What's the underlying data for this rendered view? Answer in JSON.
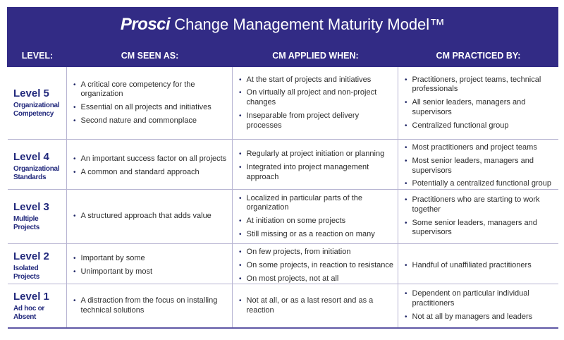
{
  "header": {
    "logo": "Prosci",
    "title": "Change Management Maturity Model™"
  },
  "columns": [
    "LEVEL:",
    "CM SEEN AS:",
    "CM APPLIED WHEN:",
    "CM PRACTICED BY:"
  ],
  "bullet_char": "•",
  "colors": {
    "header_band": "#322b85",
    "level_text": "#232a7d",
    "grid_border": "#b7b4d2",
    "bottom_border": "#5e57a5",
    "body_text": "#2d2d2d"
  },
  "rows": [
    {
      "level": "Level 5",
      "sublabel": "Organizational Competency",
      "seen_as": [
        "A critical core competency for the organization",
        "Essential on all projects and initiatives",
        "Second nature and commonplace"
      ],
      "applied_when": [
        "At the start of projects and initiatives",
        "On virtually all project and non-project changes",
        "Inseparable from project delivery processes"
      ],
      "practiced_by": [
        "Practitioners, project teams, technical professionals",
        "All senior leaders, managers and supervisors",
        "Centralized functional group"
      ]
    },
    {
      "level": "Level 4",
      "sublabel": "Organizational Standards",
      "seen_as": [
        "An important success factor on all projects",
        "A common and standard approach"
      ],
      "applied_when": [
        "Regularly at project initiation or planning",
        "Integrated into project management approach"
      ],
      "practiced_by": [
        "Most practitioners and project teams",
        "Most senior leaders, managers and supervisors",
        "Potentially a centralized functional group"
      ]
    },
    {
      "level": "Level 3",
      "sublabel": "Multiple Projects",
      "seen_as": [
        "A structured approach that adds value"
      ],
      "applied_when": [
        "Localized in particular parts of the organization",
        "At initiation on some projects",
        "Still missing or as a reaction on many"
      ],
      "practiced_by": [
        "Practitioners who are starting to work together",
        "Some senior leaders, managers and supervisors"
      ]
    },
    {
      "level": "Level 2",
      "sublabel": "Isolated Projects",
      "seen_as": [
        "Important by some",
        "Unimportant by most"
      ],
      "applied_when": [
        "On few projects, from initiation",
        "On some projects, in reaction to resistance",
        "On most projects, not at all"
      ],
      "practiced_by": [
        "Handful of unaffiliated practitioners"
      ]
    },
    {
      "level": "Level 1",
      "sublabel": "Ad hoc or Absent",
      "seen_as": [
        "A distraction from the focus on installing technical solutions"
      ],
      "applied_when": [
        "Not at all, or as a last resort and as a reaction"
      ],
      "practiced_by": [
        "Dependent on particular individual practitioners",
        "Not at all by managers and leaders"
      ]
    }
  ]
}
